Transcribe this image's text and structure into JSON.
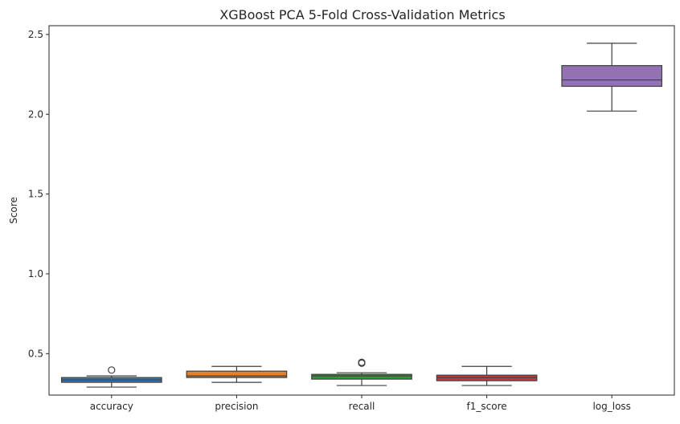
{
  "chart_data": {
    "type": "box",
    "title": "XGBoost PCA 5-Fold Cross-Validation Metrics",
    "xlabel": "",
    "ylabel": "Score",
    "ylim": [
      0.24,
      2.555
    ],
    "yticks": [
      0.5,
      1.0,
      1.5,
      2.0,
      2.5
    ],
    "ytick_labels": [
      "0.5",
      "1.0",
      "1.5",
      "2.0",
      "2.5"
    ],
    "grid": false,
    "categories": [
      "accuracy",
      "precision",
      "recall",
      "f1_score",
      "log_loss"
    ],
    "colors": [
      "#3a78b0",
      "#e1812c",
      "#3a923a",
      "#c03d3e",
      "#9372b2"
    ],
    "boxes": [
      {
        "category": "accuracy",
        "whisker_low": 0.29,
        "q1": 0.32,
        "median": 0.335,
        "q3": 0.35,
        "whisker_high": 0.36,
        "outliers": [
          0.397
        ]
      },
      {
        "category": "precision",
        "whisker_low": 0.32,
        "q1": 0.35,
        "median": 0.36,
        "q3": 0.39,
        "whisker_high": 0.42,
        "outliers": []
      },
      {
        "category": "recall",
        "whisker_low": 0.3,
        "q1": 0.34,
        "median": 0.36,
        "q3": 0.37,
        "whisker_high": 0.38,
        "outliers": [
          0.44,
          0.445
        ]
      },
      {
        "category": "f1_score",
        "whisker_low": 0.3,
        "q1": 0.33,
        "median": 0.35,
        "q3": 0.365,
        "whisker_high": 0.42,
        "outliers": []
      },
      {
        "category": "log_loss",
        "whisker_low": 2.02,
        "q1": 2.175,
        "median": 2.215,
        "q3": 2.305,
        "whisker_high": 2.445,
        "outliers": []
      }
    ]
  }
}
